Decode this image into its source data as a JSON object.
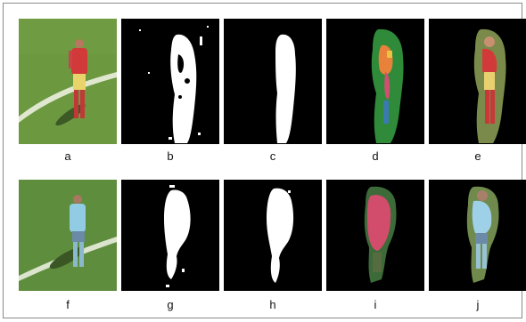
{
  "figure": {
    "row1": {
      "labels": [
        "a",
        "b",
        "c",
        "d",
        "e"
      ]
    },
    "row2": {
      "labels": [
        "f",
        "g",
        "h",
        "i",
        "j"
      ]
    }
  },
  "colors": {
    "pitch": "#5e8d3c",
    "mask_bg": "#000000",
    "mask_fg": "#ffffff",
    "team1_shirt": "#d83a3a",
    "team2_shirt": "#8ccbe6",
    "overlay_green": "#2f8a3a",
    "overlay_pink": "#d2506e"
  }
}
